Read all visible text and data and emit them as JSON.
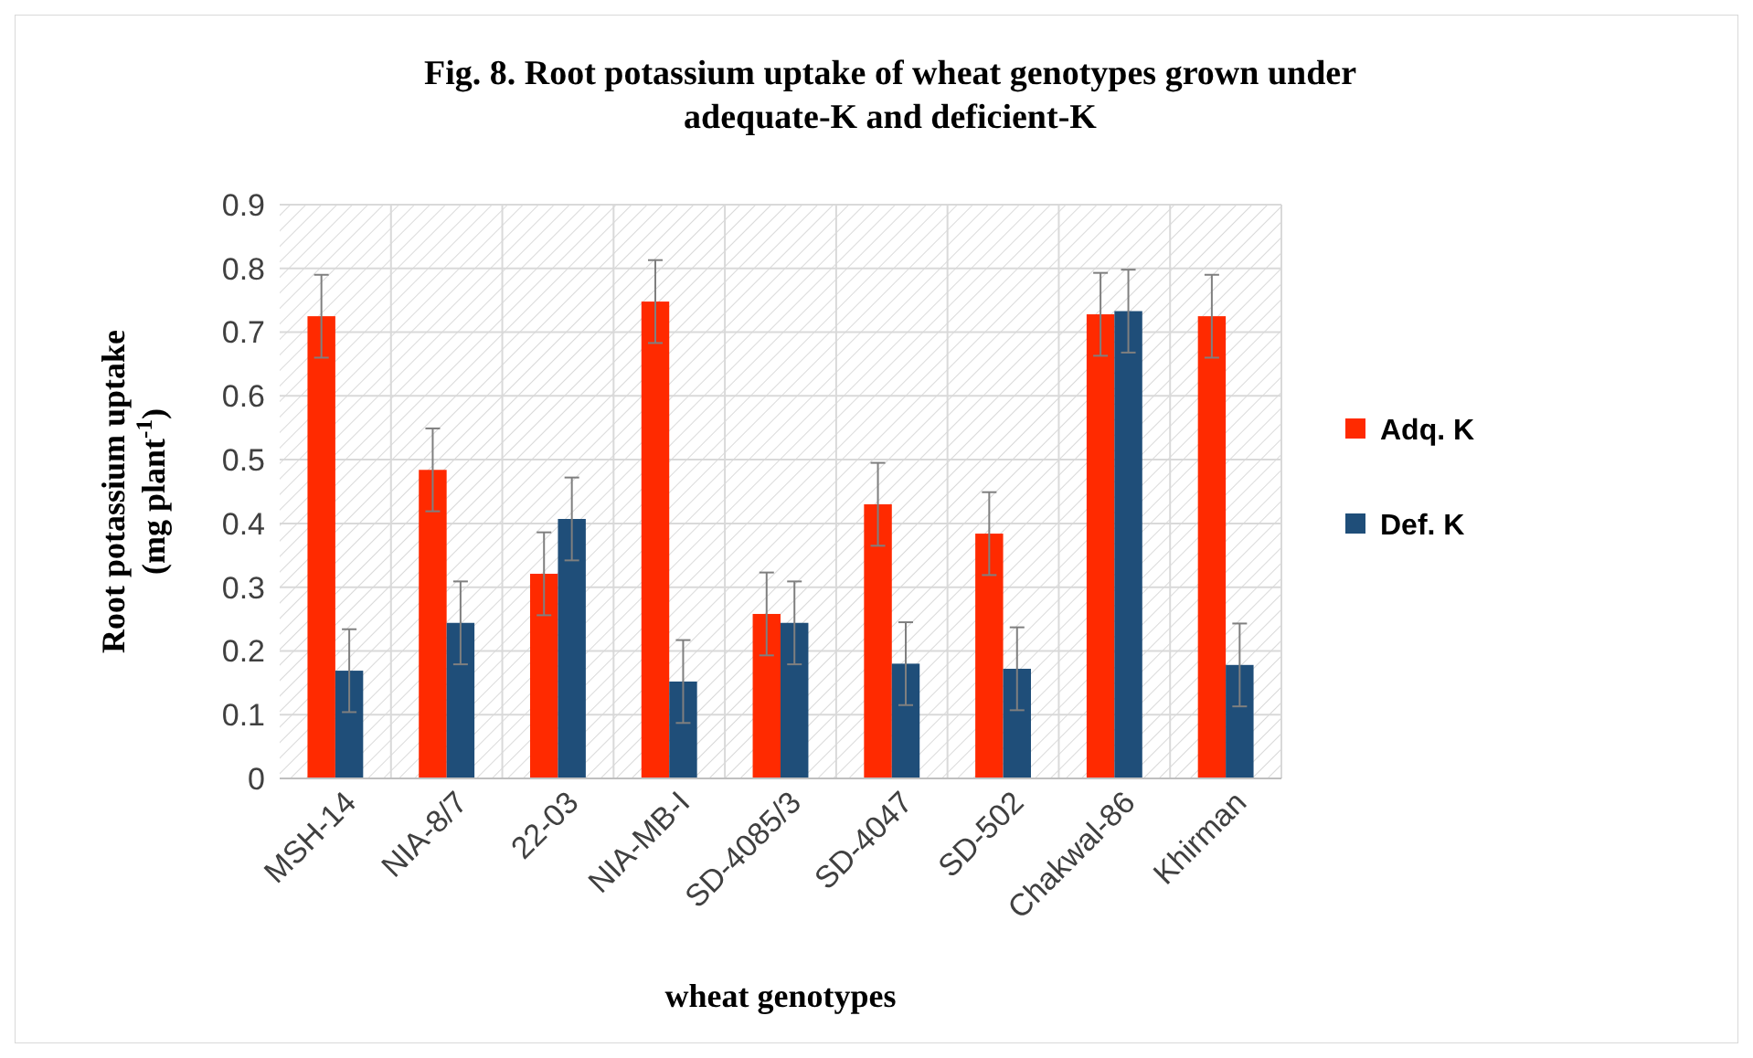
{
  "chart_data": {
    "type": "bar",
    "title": "Fig. 8. Root potassium  uptake of wheat genotypes grown under adequate-K and deficient-K",
    "xlabel": "wheat genotypes",
    "ylabel": "Root potassium uptake (mg plant$^{-1}$)",
    "categories": [
      "MSH-14",
      "NIA-8/7",
      "22-03",
      "NIA-MB-I",
      "SD-4085/3",
      "SD-4047",
      "SD-502",
      "Chakwal-86",
      "Khirman"
    ],
    "series": [
      {
        "name": "Adq.  K",
        "color": "#ff2a00",
        "values": [
          0.725,
          0.484,
          0.321,
          0.748,
          0.258,
          0.43,
          0.384,
          0.728,
          0.725
        ],
        "errors": [
          0.065,
          0.065,
          0.065,
          0.065,
          0.065,
          0.065,
          0.065,
          0.065,
          0.065
        ]
      },
      {
        "name": "Def. K",
        "color": "#1f4e79",
        "values": [
          0.169,
          0.244,
          0.407,
          0.152,
          0.244,
          0.18,
          0.172,
          0.733,
          0.178
        ],
        "errors": [
          0.065,
          0.065,
          0.065,
          0.065,
          0.065,
          0.065,
          0.065,
          0.065,
          0.065
        ]
      }
    ],
    "ylim": [
      0,
      0.9
    ],
    "yticks": [
      0,
      0.1,
      0.2,
      0.3,
      0.4,
      0.5,
      0.6,
      0.7,
      0.8,
      0.9
    ],
    "grid": true,
    "legend": "right"
  }
}
